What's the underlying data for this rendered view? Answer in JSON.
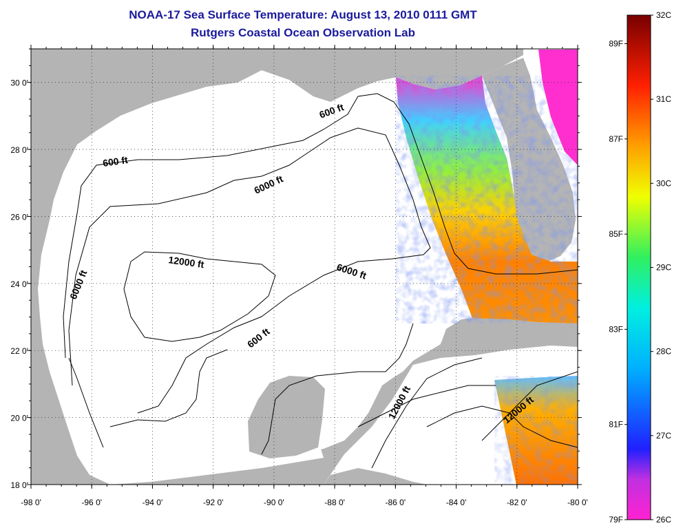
{
  "title_line1": "NOAA-17 Sea Surface Temperature:  August 13, 2010 0111 GMT",
  "title_line2": "Rutgers Coastal Ocean Observation Lab",
  "map": {
    "lon_range": [
      -98,
      -80
    ],
    "lat_range": [
      18,
      31
    ],
    "lon_ticks": [
      "-98 0'",
      "-96 0'",
      "-94 0'",
      "-92 0'",
      "-90 0'",
      "-88 0'",
      "-86 0'",
      "-84 0'",
      "-82 0'",
      "-80 0'"
    ],
    "lat_ticks": [
      "18 0'",
      "20 0'",
      "22 0'",
      "24 0'",
      "26 0'",
      "28 0'",
      "30 0'"
    ],
    "grid": "dotted",
    "land_color": "#b4b4b4",
    "water_color": "#ffffff",
    "contour_labels": [
      {
        "text": "600 ft"
      },
      {
        "text": "600 ft"
      },
      {
        "text": "6000 ft"
      },
      {
        "text": "6000 ft"
      },
      {
        "text": "12000 ft"
      },
      {
        "text": "6000 ft"
      },
      {
        "text": "600 ft"
      },
      {
        "text": "12000 ft"
      },
      {
        "text": "12000 ft"
      }
    ]
  },
  "colorbar": {
    "celsius_labels": [
      "32C",
      "31C",
      "30C",
      "29C",
      "28C",
      "27C",
      "26C"
    ],
    "fahrenheit_labels": [
      "89F",
      "87F",
      "85F",
      "83F",
      "81F",
      "79F"
    ],
    "range_c": [
      26,
      32
    ],
    "range_f": [
      79,
      89.6
    ]
  }
}
